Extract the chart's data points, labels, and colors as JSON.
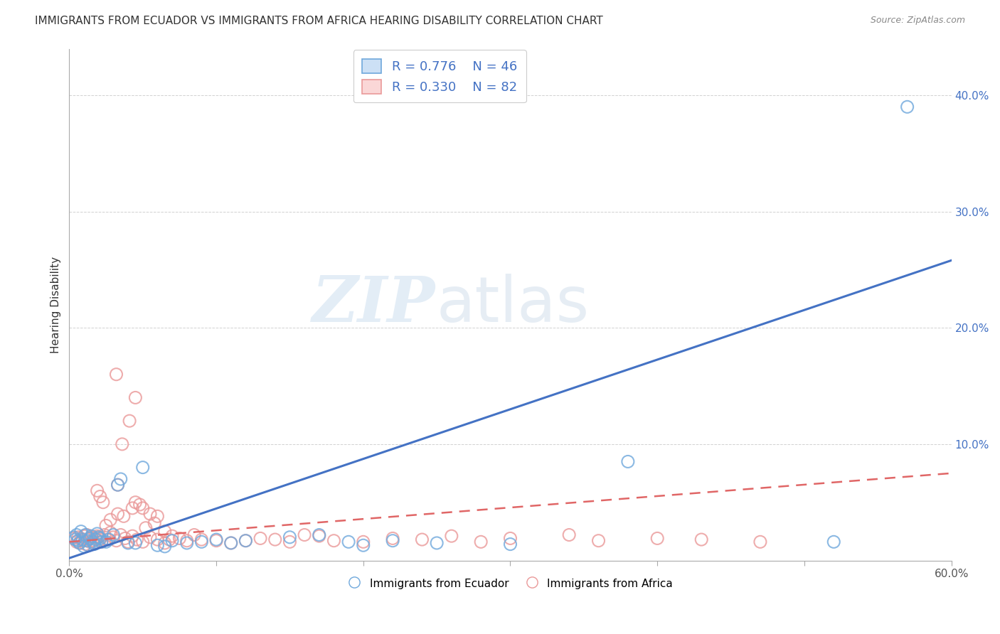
{
  "title": "IMMIGRANTS FROM ECUADOR VS IMMIGRANTS FROM AFRICA HEARING DISABILITY CORRELATION CHART",
  "source": "Source: ZipAtlas.com",
  "ylabel": "Hearing Disability",
  "xmin": 0.0,
  "xmax": 0.6,
  "ymin": 0.0,
  "ymax": 0.44,
  "yticks": [
    0.0,
    0.1,
    0.2,
    0.3,
    0.4
  ],
  "ytick_labels": [
    "",
    "10.0%",
    "20.0%",
    "30.0%",
    "40.0%"
  ],
  "xticks": [
    0.0,
    0.1,
    0.2,
    0.3,
    0.4,
    0.5,
    0.6
  ],
  "xtick_labels": [
    "0.0%",
    "",
    "",
    "",
    "",
    "",
    "60.0%"
  ],
  "ecuador_color": "#6fa8dc",
  "africa_color": "#ea9999",
  "ecuador_line_color": "#4472c4",
  "africa_line_color": "#e06666",
  "legend_ecuador_R": "0.776",
  "legend_ecuador_N": "46",
  "legend_africa_R": "0.330",
  "legend_africa_N": "82",
  "ecuador_scatter_x": [
    0.003,
    0.004,
    0.005,
    0.006,
    0.007,
    0.008,
    0.009,
    0.01,
    0.011,
    0.012,
    0.013,
    0.014,
    0.015,
    0.016,
    0.017,
    0.018,
    0.019,
    0.02,
    0.021,
    0.022,
    0.025,
    0.027,
    0.03,
    0.033,
    0.035,
    0.04,
    0.045,
    0.05,
    0.06,
    0.065,
    0.07,
    0.08,
    0.09,
    0.1,
    0.11,
    0.12,
    0.15,
    0.17,
    0.19,
    0.2,
    0.22,
    0.25,
    0.3,
    0.38,
    0.52,
    0.57
  ],
  "ecuador_scatter_y": [
    0.02,
    0.018,
    0.022,
    0.017,
    0.015,
    0.025,
    0.018,
    0.012,
    0.022,
    0.017,
    0.013,
    0.019,
    0.021,
    0.016,
    0.014,
    0.018,
    0.023,
    0.02,
    0.019,
    0.016,
    0.016,
    0.018,
    0.022,
    0.065,
    0.07,
    0.015,
    0.015,
    0.08,
    0.013,
    0.012,
    0.017,
    0.015,
    0.016,
    0.018,
    0.015,
    0.017,
    0.02,
    0.022,
    0.016,
    0.013,
    0.017,
    0.015,
    0.014,
    0.085,
    0.016,
    0.39
  ],
  "africa_scatter_x": [
    0.003,
    0.005,
    0.006,
    0.007,
    0.008,
    0.009,
    0.01,
    0.011,
    0.012,
    0.013,
    0.014,
    0.015,
    0.016,
    0.017,
    0.018,
    0.019,
    0.02,
    0.021,
    0.022,
    0.024,
    0.026,
    0.028,
    0.03,
    0.032,
    0.035,
    0.038,
    0.04,
    0.043,
    0.046,
    0.05,
    0.055,
    0.06,
    0.065,
    0.07,
    0.075,
    0.08,
    0.085,
    0.09,
    0.1,
    0.11,
    0.12,
    0.13,
    0.14,
    0.15,
    0.16,
    0.17,
    0.18,
    0.2,
    0.22,
    0.24,
    0.26,
    0.28,
    0.3,
    0.34,
    0.36,
    0.4,
    0.43,
    0.47,
    0.019,
    0.021,
    0.023,
    0.033,
    0.037,
    0.043,
    0.048,
    0.033,
    0.028,
    0.025,
    0.032,
    0.036,
    0.041,
    0.045,
    0.052,
    0.058,
    0.065,
    0.068,
    0.045,
    0.05,
    0.055,
    0.06
  ],
  "africa_scatter_y": [
    0.019,
    0.016,
    0.02,
    0.015,
    0.019,
    0.017,
    0.021,
    0.014,
    0.022,
    0.018,
    0.016,
    0.02,
    0.017,
    0.015,
    0.019,
    0.021,
    0.02,
    0.018,
    0.016,
    0.022,
    0.018,
    0.024,
    0.02,
    0.017,
    0.022,
    0.019,
    0.016,
    0.021,
    0.018,
    0.016,
    0.02,
    0.018,
    0.015,
    0.021,
    0.019,
    0.017,
    0.022,
    0.018,
    0.017,
    0.015,
    0.017,
    0.019,
    0.018,
    0.016,
    0.022,
    0.021,
    0.017,
    0.016,
    0.019,
    0.018,
    0.021,
    0.016,
    0.019,
    0.022,
    0.017,
    0.019,
    0.018,
    0.016,
    0.06,
    0.055,
    0.05,
    0.065,
    0.038,
    0.045,
    0.048,
    0.04,
    0.035,
    0.03,
    0.16,
    0.1,
    0.12,
    0.14,
    0.028,
    0.032,
    0.025,
    0.018,
    0.05,
    0.045,
    0.04,
    0.038
  ],
  "ecuador_line_x": [
    0.0,
    0.6
  ],
  "ecuador_line_y": [
    0.002,
    0.258
  ],
  "africa_line_x": [
    0.0,
    0.6
  ],
  "africa_line_y": [
    0.016,
    0.075
  ],
  "watermark_zip": "ZIP",
  "watermark_atlas": "atlas",
  "background_color": "#ffffff",
  "grid_color": "#cccccc",
  "title_fontsize": 11,
  "tick_label_color_y": "#4472c4",
  "tick_label_color_x": "#666666"
}
